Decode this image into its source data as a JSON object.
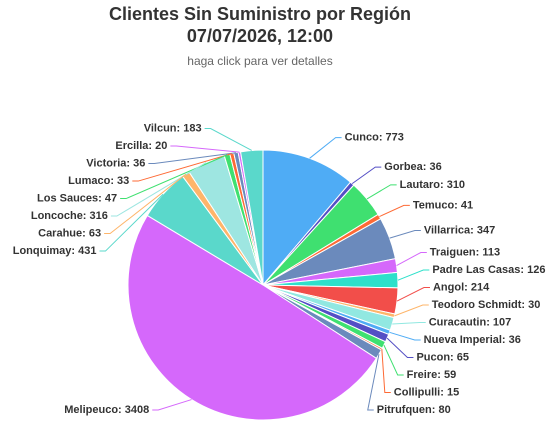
{
  "chart_data": {
    "type": "pie",
    "title": [
      "Clientes Sin Suministro por Región",
      "07/07/2026, 12:00"
    ],
    "subtitle": "haga click para ver detalles",
    "values": [
      773,
      36,
      310,
      41,
      347,
      113,
      126,
      214,
      30,
      107,
      36,
      65,
      59,
      15,
      80,
      3408,
      431,
      63,
      316,
      47,
      33,
      36,
      20,
      183
    ],
    "value_labels": [
      "Cunco: 773",
      "Gorbea: 36",
      "Lautaro: 310",
      "Temuco: 41",
      "Villarrica: 347",
      "Traiguen: 113",
      "Padre Las Casas: 126",
      "Angol: 214",
      "Teodoro Schmidt: 30",
      "Curacautin: 107",
      "Nueva Imperial: 36",
      "Pucon: 65",
      "Freire: 59",
      "Collipulli: 15",
      "Pitrufquen: 80",
      "Melipeuco: 3408",
      "Lonquimay: 431",
      "Carahue: 63",
      "Loncoche: 316",
      "Los Sauces: 47",
      "Lumaco: 33",
      "Victoria: 36",
      "Ercilla: 20",
      "Vilcun: 183"
    ],
    "colors": [
      "#4facf5",
      "#544fc5",
      "#3fe070",
      "#fe6a35",
      "#6b8abc",
      "#d568fb",
      "#2ee0ca",
      "#f24e4a",
      "#feb56a",
      "#91e8e1",
      "#4facf5",
      "#544fc5",
      "#3fe070",
      "#fe6a35",
      "#6b8abc",
      "#d568fb",
      "#5ad8cb",
      "#feb56a",
      "#9ee6e1",
      "#3fe070",
      "#fe6a35",
      "#6b8abc",
      "#d568fb",
      "#5ad8cb"
    ]
  }
}
